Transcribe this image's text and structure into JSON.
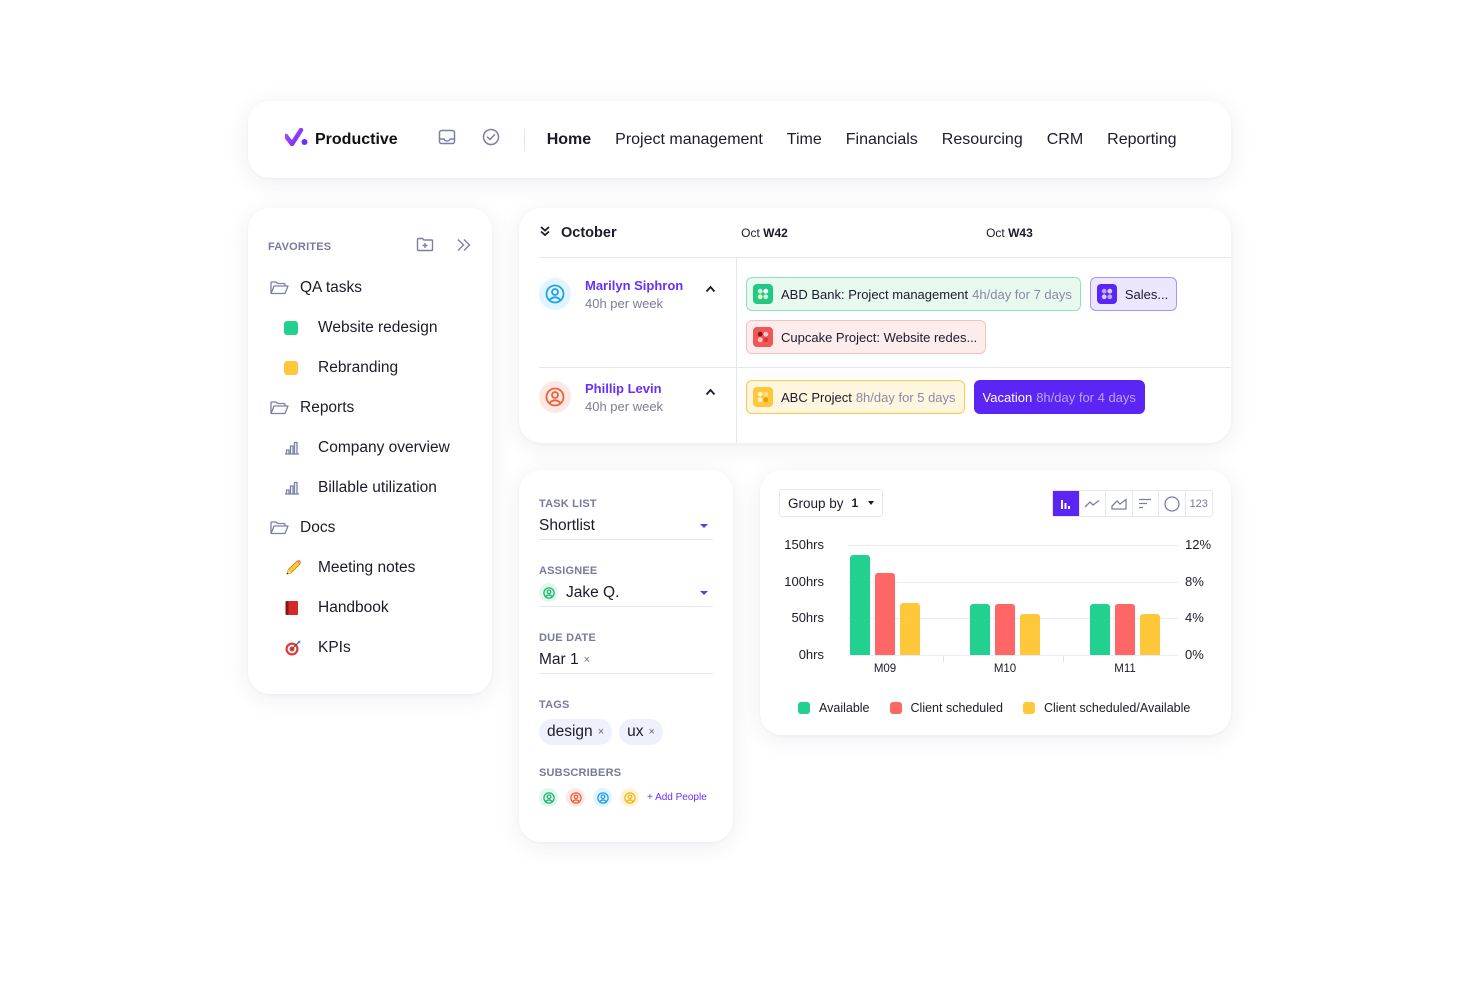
{
  "app": {
    "name": "Productive"
  },
  "topnav": {
    "icons": [
      "inbox-icon",
      "check-circle-icon"
    ],
    "links": [
      {
        "label": "Home",
        "active": true
      },
      {
        "label": "Project management",
        "active": false
      },
      {
        "label": "Time",
        "active": false
      },
      {
        "label": "Financials",
        "active": false
      },
      {
        "label": "Resourcing",
        "active": false
      },
      {
        "label": "CRM",
        "active": false
      },
      {
        "label": "Reporting",
        "active": false
      }
    ]
  },
  "favorites": {
    "title": "FAVORITES",
    "header_icons": [
      "folder-add-icon",
      "double-chevron-right-icon"
    ],
    "items": [
      {
        "label": "QA tasks",
        "level": 1,
        "icon": "folder-icon"
      },
      {
        "label": "Website redesign",
        "level": 2,
        "icon": "square",
        "color": "#22d08f"
      },
      {
        "label": "Rebranding",
        "level": 2,
        "icon": "square",
        "color": "#ffc83a"
      },
      {
        "label": "Reports",
        "level": 1,
        "icon": "folder-icon"
      },
      {
        "label": "Company overview",
        "level": 2,
        "icon": "bar-chart-icon"
      },
      {
        "label": "Billable utilization",
        "level": 2,
        "icon": "bar-chart-icon"
      },
      {
        "label": "Docs",
        "level": 1,
        "icon": "folder-icon"
      },
      {
        "label": "Meeting notes",
        "level": 2,
        "icon": "pencil-emoji",
        "glyph": "✏️"
      },
      {
        "label": "Handbook",
        "level": 2,
        "icon": "book-emoji",
        "glyph": "📕"
      },
      {
        "label": "KPIs",
        "level": 2,
        "icon": "target-emoji",
        "glyph": "🎯"
      }
    ]
  },
  "scheduler": {
    "month": "October",
    "weeks": [
      {
        "prefix": "Oct",
        "week": "W42"
      },
      {
        "prefix": "Oct",
        "week": "W43"
      }
    ],
    "people": [
      {
        "name": "Marilyn Siphron",
        "hours": "40h per week",
        "avatar_color": "#1fa3e8",
        "avatar_bg": "#e2f4fd",
        "bookings": [
          {
            "title": "ABD Bank: Project management",
            "detail": "4h/day for 7 days",
            "style": "green"
          },
          {
            "title": "Sales...",
            "detail": "",
            "style": "purple"
          },
          {
            "title": "Cupcake Project: Website redes...",
            "detail": "",
            "style": "red"
          }
        ]
      },
      {
        "name": "Phillip Levin",
        "hours": "40h per week",
        "avatar_color": "#f0603a",
        "avatar_bg": "#fde9e4",
        "bookings": [
          {
            "title": "ABC Project",
            "detail": "8h/day for 5 days",
            "style": "yellow"
          },
          {
            "title": "Vacation",
            "detail": "8h/day for 4 days",
            "style": "vacation"
          }
        ]
      }
    ]
  },
  "taskform": {
    "task_list": {
      "label": "TASK LIST",
      "value": "Shortlist"
    },
    "assignee": {
      "label": "ASSIGNEE",
      "value": "Jake Q."
    },
    "due_date": {
      "label": "DUE DATE",
      "value": "Mar 1",
      "clear": "×"
    },
    "tags": {
      "label": "TAGS",
      "items": [
        "design",
        "ux"
      ],
      "clear": "×"
    },
    "subscribers": {
      "label": "SUBSCRIBERS",
      "avatars": [
        {
          "color": "#1fb874",
          "bg": "#e1f7ec"
        },
        {
          "color": "#f0603a",
          "bg": "#fde9e4"
        },
        {
          "color": "#1fa3e8",
          "bg": "#e2f4fd"
        },
        {
          "color": "#f5b80f",
          "bg": "#fff4d9"
        }
      ],
      "add_label": "+ Add People"
    }
  },
  "chart_toolbar": {
    "group_by_label": "Group by",
    "group_by_count": "1",
    "chart_types": [
      "bar-chart-icon",
      "line-chart-icon",
      "area-chart-icon",
      "sort-bars-icon",
      "pie-chart-icon",
      "number-icon"
    ],
    "number_label": "123",
    "active_type": "bar-chart-icon"
  },
  "chart_data": {
    "type": "bar",
    "title": "",
    "categories": [
      "M09",
      "M10",
      "M11"
    ],
    "series": [
      {
        "name": "Available",
        "color": "#22d08f",
        "values": [
          136,
          70,
          70
        ]
      },
      {
        "name": "Client scheduled",
        "color": "#ff6666",
        "values": [
          112,
          70,
          70
        ]
      },
      {
        "name": "Client scheduled/Available",
        "color": "#ffc83a",
        "values": [
          71,
          56,
          56
        ]
      }
    ],
    "yticks_left": [
      "150hrs",
      "100hrs",
      "50hrs",
      "0hrs"
    ],
    "yticks_right": [
      "12%",
      "8%",
      "4%",
      "0%"
    ],
    "ylim": [
      0,
      150
    ],
    "y2lim": [
      0,
      12
    ],
    "xlabel": "",
    "ylabel": "",
    "grid": true,
    "legend_position": "bottom"
  }
}
